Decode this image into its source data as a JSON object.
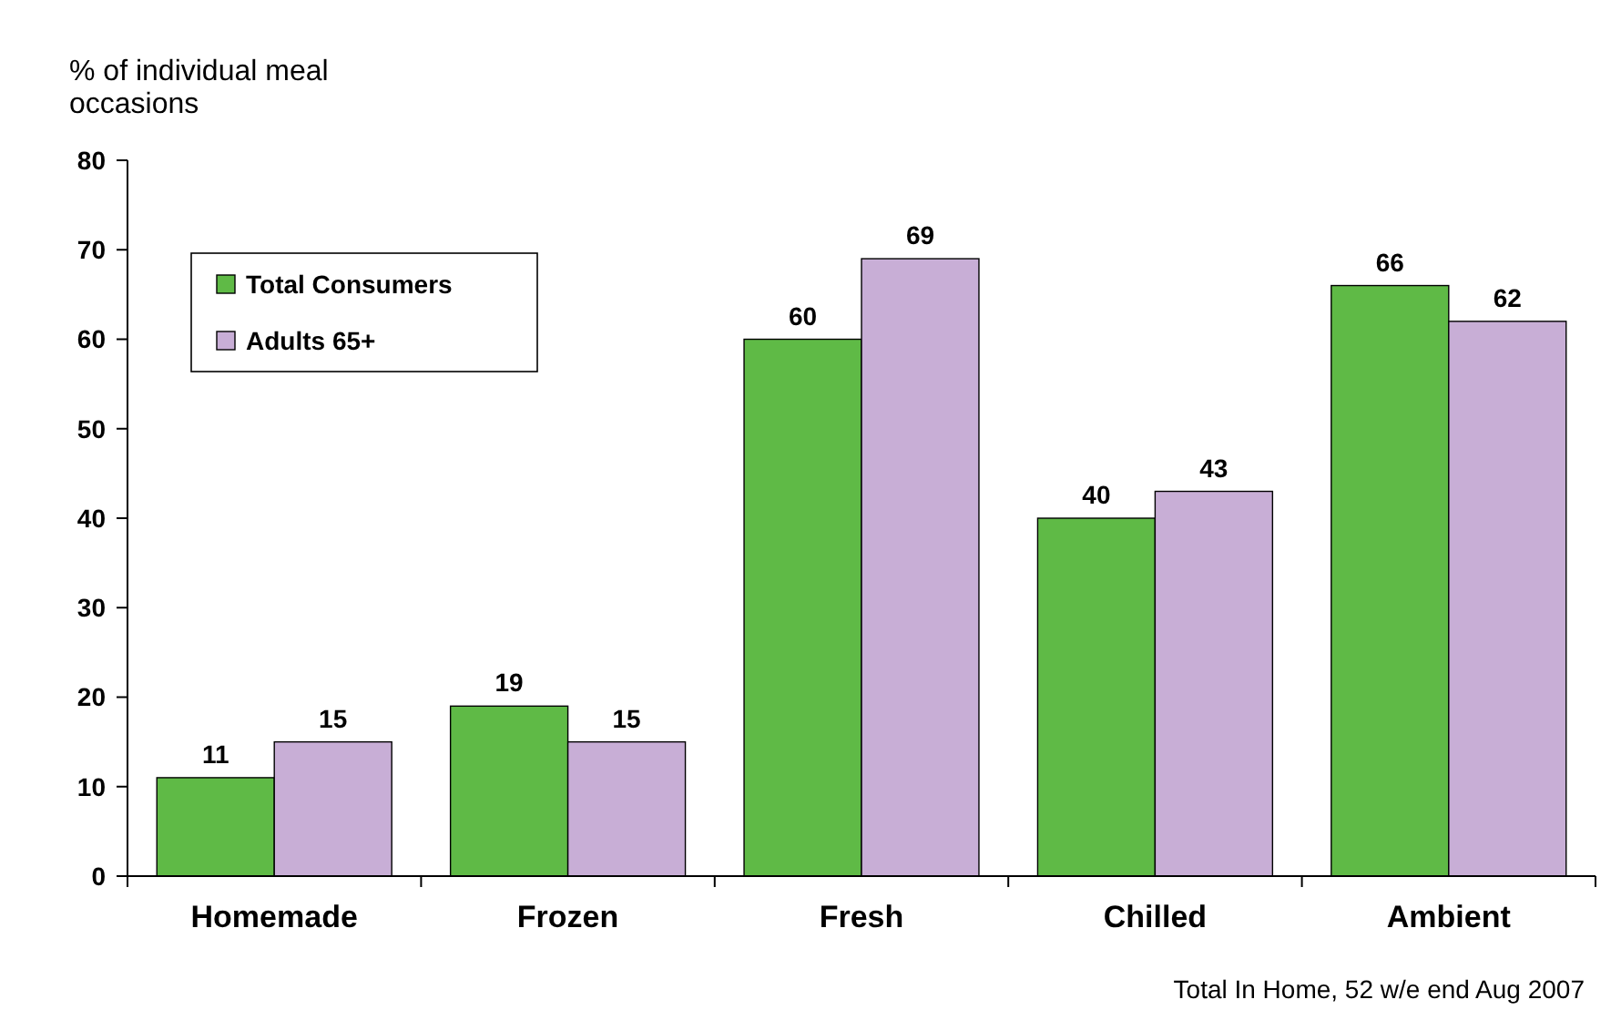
{
  "chart_data": {
    "type": "bar",
    "ylabel": "% of individual meal occasions",
    "categories": [
      "Homemade",
      "Frozen",
      "Fresh",
      "Chilled",
      "Ambient"
    ],
    "series": [
      {
        "name": "Total Consumers",
        "color": "#5fba46",
        "values": [
          11,
          19,
          60,
          40,
          66
        ]
      },
      {
        "name": "Adults 65+",
        "color": "#c8aed6",
        "values": [
          15,
          15,
          69,
          43,
          62
        ]
      }
    ],
    "ylim": [
      0,
      80
    ],
    "yticks": [
      0,
      10,
      20,
      30,
      40,
      50,
      60,
      70,
      80
    ],
    "data_labels": true,
    "legend": "top left",
    "grid": false,
    "annotations": [
      "Total In Home, 52 w/e end Aug 2007"
    ]
  }
}
